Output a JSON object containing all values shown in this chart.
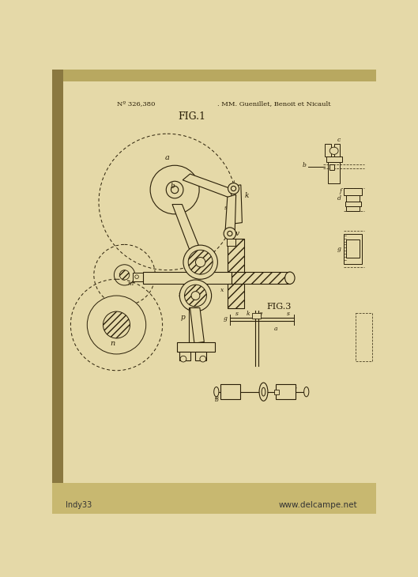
{
  "bg_top": "#c8b878",
  "bg_paper": "#e5d9a8",
  "bg_bottom": "#d0c080",
  "line_color": "#2a1f08",
  "title_text": "Nº 326,380",
  "authors_text": ". MM. Guenillet, Benoit et Nicault",
  "fig1_label": "FIG.1",
  "fig3_label": "FIG.3",
  "watermark_left": "Indy33",
  "watermark_right": "www.delcampe.net"
}
